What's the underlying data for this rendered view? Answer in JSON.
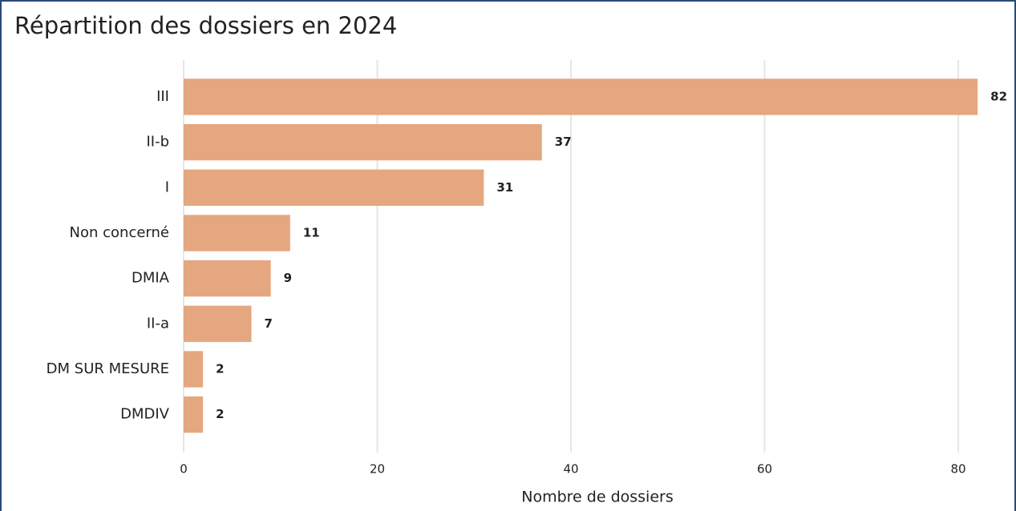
{
  "chart_data": {
    "type": "bar",
    "orientation": "horizontal",
    "title": "Répartition des dossiers en 2024",
    "categories": [
      "III",
      "II-b",
      "I",
      "Non concerné",
      "DMIA",
      "II-a",
      "DM SUR MESURE",
      "DMDIV"
    ],
    "values": [
      82,
      37,
      31,
      11,
      9,
      7,
      2,
      2
    ],
    "color": "#e5a77f",
    "xlabel": "Nombre de dossiers",
    "xlim": [
      0,
      84
    ],
    "xticks": [
      0,
      20,
      40,
      60,
      80
    ],
    "grid": true
  }
}
